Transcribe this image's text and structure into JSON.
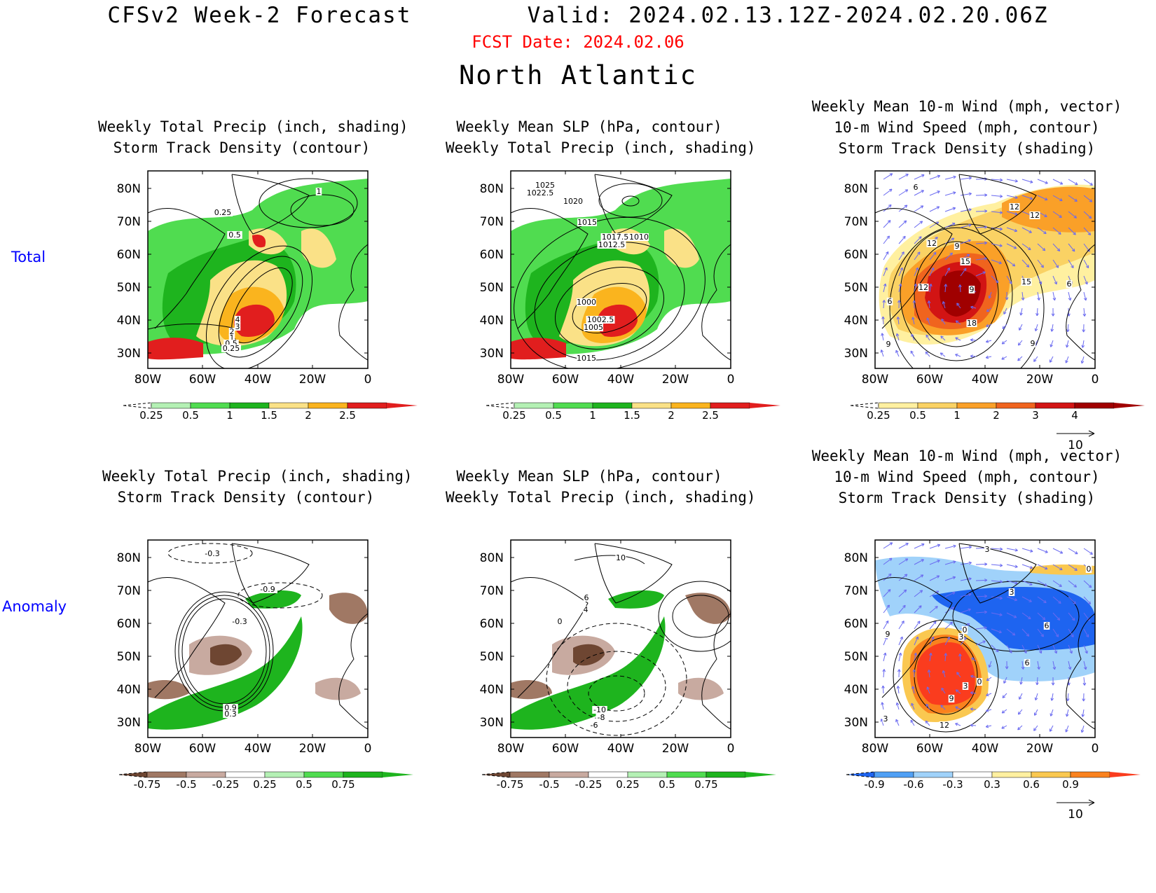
{
  "header": {
    "title": "CFSv2 Week-2 Forecast        Valid: 2024.02.13.12Z-2024.02.20.06Z",
    "fcst_date": "FCST Date: 2024.02.06",
    "region": "North Atlantic"
  },
  "rows": {
    "total": "Total",
    "anomaly": "Anomaly"
  },
  "panel_titles": {
    "p1": [
      "Weekly Total Precip (inch, shading)",
      "Storm Track Density (contour)"
    ],
    "p2": [
      "Weekly Mean SLP (hPa, contour)",
      "Weekly Total Precip (inch, shading)"
    ],
    "p3": [
      "Weekly Mean 10-m Wind (mph, vector)",
      "10-m Wind Speed (mph, contour)",
      "Storm Track Density (shading)"
    ],
    "p4": [
      "Weekly Total Precip (inch, shading)",
      "Storm Track Density (contour)"
    ],
    "p5": [
      "Weekly Mean SLP (hPa, contour)",
      "Weekly Total Precip (inch, shading)"
    ],
    "p6": [
      "Weekly Mean 10-m Wind (mph, vector)",
      "10-m Wind Speed (mph, contour)",
      "Storm Track Density (shading)"
    ]
  },
  "axes": {
    "lat_labels": [
      "80N",
      "70N",
      "60N",
      "50N",
      "40N",
      "30N"
    ],
    "lon_labels": [
      "80W",
      "60W",
      "40W",
      "20W",
      "0"
    ]
  },
  "colorbars": {
    "precip_total": {
      "labels": [
        "0.25",
        "0.5",
        "1",
        "1.5",
        "2",
        "2.5"
      ],
      "colors": [
        "#ffffff",
        "#b4f0b4",
        "#50dc50",
        "#1eb41e",
        "#fae187",
        "#fab41e",
        "#e11e1e",
        "#e11e1e"
      ]
    },
    "storm_total": {
      "labels": [
        "0.25",
        "0.5",
        "1",
        "2",
        "3",
        "4"
      ],
      "colors": [
        "#ffffff",
        "#fff0a0",
        "#fad264",
        "#faa028",
        "#f0641e",
        "#d21414",
        "#a00000",
        "#a00000"
      ]
    },
    "precip_anom": {
      "labels": [
        "-0.75",
        "-0.5",
        "-0.25",
        "0.25",
        "0.5",
        "0.75"
      ],
      "colors": [
        "#6e4632",
        "#a07864",
        "#c8aaa0",
        "#ffffff",
        "#b4f0b4",
        "#50dc50",
        "#1eb41e",
        "#1eb41e"
      ]
    },
    "storm_anom": {
      "labels": [
        "-0.9",
        "-0.6",
        "-0.3",
        "0.3",
        "0.6",
        "0.9"
      ],
      "colors": [
        "#1e64f0",
        "#50a0f5",
        "#a0d2fa",
        "#ffffff",
        "#fff0a0",
        "#fac850",
        "#fa821e",
        "#fa3c1e"
      ]
    }
  },
  "vector_ref": {
    "label": "10"
  },
  "contour_labels": {
    "p1": [
      "1",
      "0.25",
      "0.5",
      "4",
      "3",
      "2",
      "1",
      "0.5",
      "0.25"
    ],
    "p2": [
      "1025",
      "1022.5",
      "1020",
      "1015",
      "1017.5",
      "1012.5",
      "1010",
      "1000",
      "1002.5",
      "1005",
      "1015"
    ],
    "p3": [
      "6",
      "12",
      "12",
      "9",
      "12",
      "15",
      "12",
      "9",
      "15",
      "6",
      "6",
      "18",
      "9",
      "9"
    ],
    "p4": [
      "-0.3",
      "-0.9",
      "-0.3",
      "0.9",
      "0.3"
    ],
    "p5": [
      "10",
      "6",
      "4",
      "0",
      "-10",
      "-8",
      "-6"
    ],
    "p6": [
      "3",
      "0",
      "3",
      "9",
      "3",
      "0",
      "6",
      "6",
      "3",
      "0",
      "9",
      "12",
      "3"
    ]
  },
  "colors": {
    "title": "#000000",
    "fcst_date": "#ff0000",
    "row_label": "#0000ff",
    "vector": "#6a6af0"
  }
}
